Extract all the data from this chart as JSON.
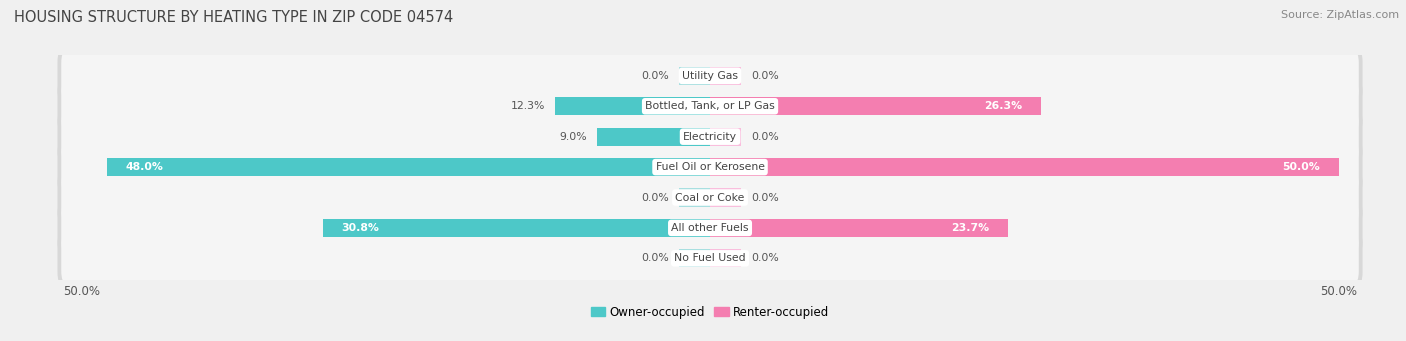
{
  "title": "HOUSING STRUCTURE BY HEATING TYPE IN ZIP CODE 04574",
  "source": "Source: ZipAtlas.com",
  "categories": [
    "Utility Gas",
    "Bottled, Tank, or LP Gas",
    "Electricity",
    "Fuel Oil or Kerosene",
    "Coal or Coke",
    "All other Fuels",
    "No Fuel Used"
  ],
  "owner_values": [
    0.0,
    12.3,
    9.0,
    48.0,
    0.0,
    30.8,
    0.0
  ],
  "renter_values": [
    0.0,
    26.3,
    0.0,
    50.0,
    0.0,
    23.7,
    0.0
  ],
  "owner_color": "#4DC8C8",
  "renter_color": "#F47EB0",
  "owner_color_light": "#A8DFE0",
  "renter_color_light": "#F9BEDD",
  "owner_label": "Owner-occupied",
  "renter_label": "Renter-occupied",
  "background_color": "#f0f0f0",
  "row_bg_color": "#e0e0e0",
  "row_bg_inner": "#f8f8f8",
  "max_value": 50.0,
  "title_fontsize": 10.5,
  "source_fontsize": 8,
  "bar_height": 0.6,
  "xlim_left": -52.0,
  "xlim_right": 52.0,
  "stub_size": 2.5
}
